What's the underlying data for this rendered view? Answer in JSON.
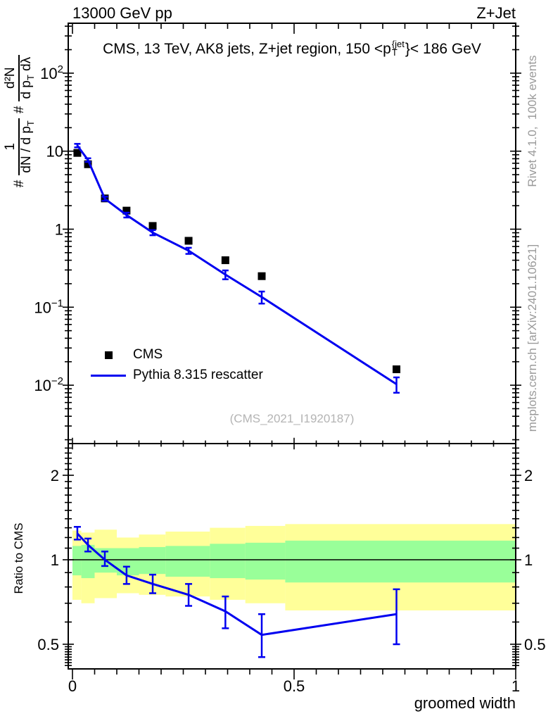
{
  "header": {
    "left": "13000 GeV pp",
    "right": "Z+Jet"
  },
  "title": {
    "prefix": "CMS, 13 TeV, AK8 jets, Z+jet region, 150 <p",
    "sup": "{jet",
    "sub": "T",
    "suffix": "}< 186 GeV"
  },
  "ylabel": {
    "hash1": "#",
    "frac1_num": "1",
    "frac1_den": "dN / d p",
    "frac1_den_sub": "T",
    "hash2": "#",
    "frac2_num": "d²N",
    "frac2_den_a": "d p",
    "frac2_den_a_sub": "T",
    "frac2_den_b": " dλ"
  },
  "legend": [
    {
      "label": "CMS",
      "marker": "square",
      "color": "#000000"
    },
    {
      "label": "Pythia 8.315 rescatter",
      "marker": "line",
      "color": "#0000f0"
    }
  ],
  "watermark": "(CMS_2021_I1920187)",
  "side_text_top": "Rivet 4.1.0,  100k events",
  "side_text_bottom": "mcplots.cern.ch [arXiv:2401.10621]",
  "ratio_ylabel": "Ratio to CMS",
  "xlabel": "groomed width",
  "colors": {
    "mc": "#0000f0",
    "data": "#000000",
    "band_yellow": "#ffff99",
    "band_green": "#99ff99",
    "gray_text": "#9a9a9a",
    "ref_line": "#000000"
  },
  "chart_data": {
    "type": "scatter+line with ratio panel",
    "title": "CMS, 13 TeV, AK8 jets, Z+jet region, 150 < pT(jet) < 186 GeV",
    "xlabel": "groomed width",
    "ylabel": "# 1/(dN/dpT) # d2N/(dpT dlambda)",
    "x": [
      0.011,
      0.035,
      0.073,
      0.122,
      0.181,
      0.262,
      0.345,
      0.427,
      0.731
    ],
    "bin_edges": [
      0,
      0.02,
      0.05,
      0.1,
      0.15,
      0.21,
      0.31,
      0.39,
      0.48,
      1.0
    ],
    "series": [
      {
        "name": "CMS",
        "values": [
          9.5,
          6.8,
          2.48,
          1.73,
          1.1,
          0.71,
          0.4,
          0.25,
          0.016
        ]
      },
      {
        "name": "Pythia 8.315 rescatter",
        "values": [
          11.8,
          7.7,
          2.46,
          1.52,
          0.905,
          0.53,
          0.262,
          0.135,
          0.0103
        ],
        "err_frac": [
          0.052,
          0.053,
          0.06,
          0.071,
          0.076,
          0.09,
          0.13,
          0.176,
          0.223
        ]
      }
    ],
    "ratio": {
      "values": [
        1.24,
        1.13,
        1.0,
        0.88,
        0.82,
        0.75,
        0.655,
        0.54,
        0.64
      ],
      "err_lo": [
        1.18,
        1.07,
        0.95,
        0.82,
        0.76,
        0.685,
        0.57,
        0.45,
        0.5
      ],
      "err_hi": [
        1.31,
        1.19,
        1.07,
        0.945,
        0.885,
        0.82,
        0.74,
        0.64,
        0.785
      ]
    },
    "band_green": [
      [
        0.88,
        1.12
      ],
      [
        0.86,
        1.13
      ],
      [
        0.9,
        1.1
      ],
      [
        0.88,
        1.1
      ],
      [
        0.89,
        1.11
      ],
      [
        0.87,
        1.12
      ],
      [
        0.86,
        1.14
      ],
      [
        0.85,
        1.15
      ],
      [
        0.83,
        1.17
      ]
    ],
    "band_yellow": [
      [
        0.72,
        1.27
      ],
      [
        0.7,
        1.25
      ],
      [
        0.73,
        1.28
      ],
      [
        0.76,
        1.2
      ],
      [
        0.75,
        1.23
      ],
      [
        0.74,
        1.26
      ],
      [
        0.72,
        1.3
      ],
      [
        0.7,
        1.32
      ],
      [
        0.66,
        1.34
      ]
    ],
    "axes": {
      "x": {
        "min": 0,
        "max": 1,
        "minor_step": 0.05,
        "ticks": [
          {
            "v": 0,
            "label": "0"
          },
          {
            "v": 0.5,
            "label": "0.5"
          },
          {
            "v": 1,
            "label": "1"
          }
        ]
      },
      "y_main": {
        "log": true,
        "range": [
          0.0019,
          430
        ],
        "ticks": [
          {
            "v": 100,
            "base": "10",
            "exp": "2"
          },
          {
            "v": 10,
            "base": "10",
            "exp": ""
          },
          {
            "v": 1,
            "base": "1",
            "exp": ""
          },
          {
            "v": 0.1,
            "base": "10",
            "exp": "−1"
          },
          {
            "v": 0.01,
            "base": "10",
            "exp": "−2"
          }
        ]
      },
      "y_ratio": {
        "log": true,
        "range": [
          0.41,
          2.58
        ],
        "ticks": [
          {
            "v": 2,
            "label": "2"
          },
          {
            "v": 1,
            "label": "1"
          },
          {
            "v": 0.5,
            "label": "0.5"
          }
        ],
        "minor": [
          0.42,
          0.43,
          0.44,
          0.45,
          0.46,
          0.47,
          0.48,
          0.49,
          0.6,
          0.7,
          0.8,
          0.9,
          1.1,
          1.2,
          1.3,
          1.4,
          1.5,
          1.6,
          1.7,
          1.8,
          1.9,
          2.1,
          2.2,
          2.3,
          2.4,
          2.5
        ]
      }
    },
    "legend_position": "left-middle",
    "grid": false
  }
}
